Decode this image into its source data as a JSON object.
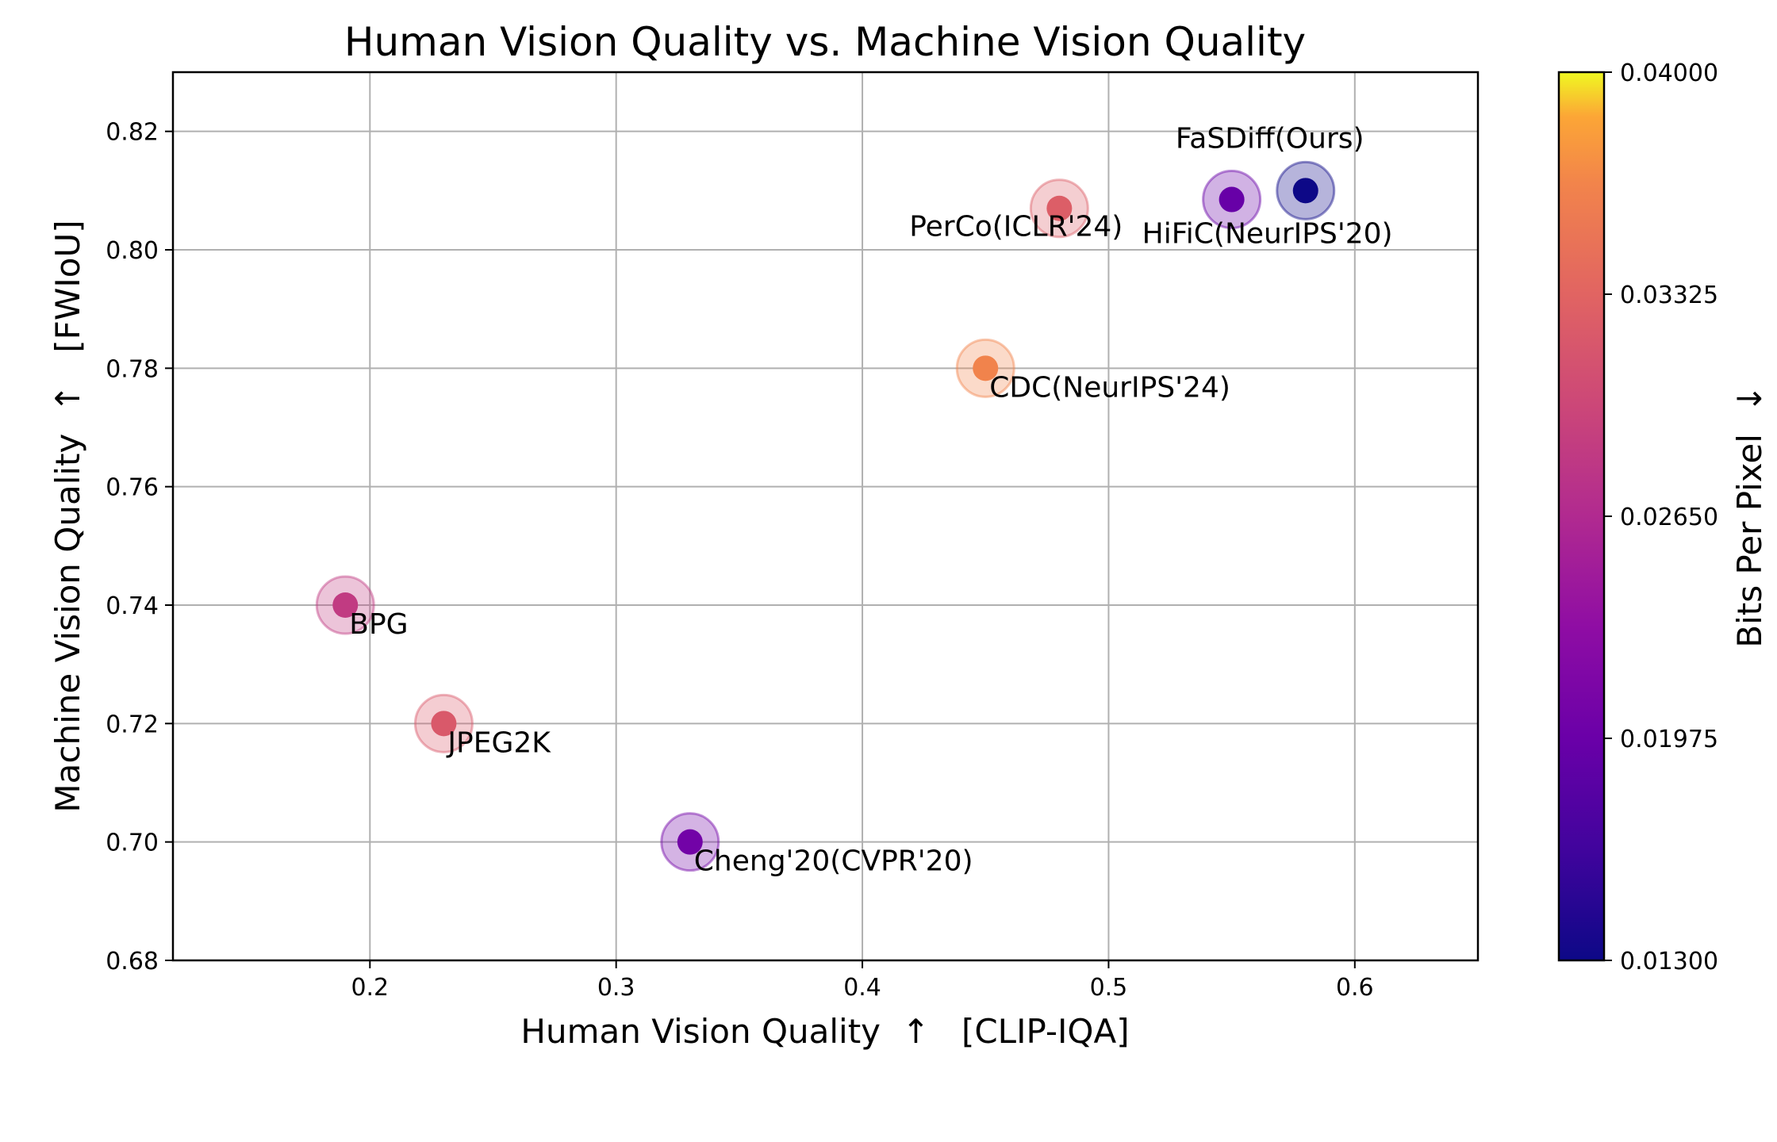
{
  "chart_data": {
    "type": "scatter",
    "title": "Human Vision Quality vs. Machine Vision Quality",
    "xlabel": "Human Vision Quality  ↑   [CLIP-IQA]",
    "ylabel": "Machine Vision Quality  ↑   [FWIoU]",
    "xlim": [
      0.12,
      0.65
    ],
    "ylim": [
      0.68,
      0.83
    ],
    "xticks": [
      "0.2",
      "0.3",
      "0.4",
      "0.5",
      "0.6"
    ],
    "yticks": [
      "0.68",
      "0.70",
      "0.72",
      "0.74",
      "0.76",
      "0.78",
      "0.80",
      "0.82"
    ],
    "grid": true,
    "colorbar": {
      "label": "Bits Per Pixel  ↓",
      "colormap": "plasma",
      "range": [
        0.013,
        0.04
      ],
      "ticks": [
        "0.01300",
        "0.01975",
        "0.02650",
        "0.03325",
        "0.04000"
      ]
    },
    "points": [
      {
        "label": "FaSDiff(Ours)",
        "x": 0.58,
        "y": 0.81,
        "bpp": 0.013,
        "label_pos": "above"
      },
      {
        "label": "HiFiC(NeurIPS'20)",
        "x": 0.55,
        "y": 0.8085,
        "bpp": 0.0195,
        "label_pos": "below"
      },
      {
        "label": "PerCo(ICLR'24)",
        "x": 0.48,
        "y": 0.807,
        "bpp": 0.0325,
        "label_pos": "below-left"
      },
      {
        "label": "CDC(NeurIPS'24)",
        "x": 0.45,
        "y": 0.78,
        "bpp": 0.0365,
        "label_pos": "below-right"
      },
      {
        "label": "BPG",
        "x": 0.19,
        "y": 0.74,
        "bpp": 0.0285,
        "label_pos": "below-right"
      },
      {
        "label": "JPEG2K",
        "x": 0.23,
        "y": 0.72,
        "bpp": 0.032,
        "label_pos": "below-right"
      },
      {
        "label": "Cheng'20(CVPR'20)",
        "x": 0.33,
        "y": 0.7,
        "bpp": 0.0205,
        "label_pos": "below-right"
      }
    ]
  }
}
